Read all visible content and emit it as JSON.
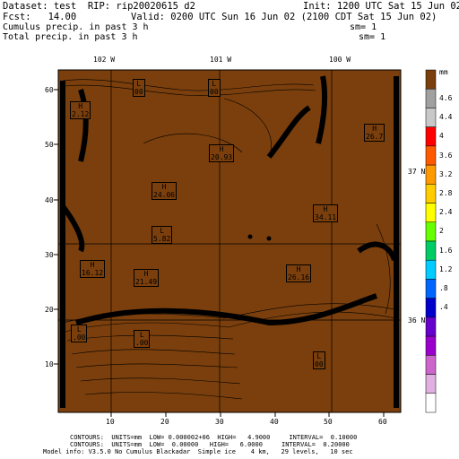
{
  "header": {
    "dataset_line": "Dataset: test  RIP: rip20020615 d2",
    "init_line": "Init: 1200 UTC Sat 15 Jun 02",
    "fcst_line": "Fcst:   14.00",
    "valid_line": "Valid: 0200 UTC Sun 16 Jun 02 (2100 CDT Sat 15 Jun 02)",
    "field1_line": "Cumulus precip. in past 3 h",
    "sm1_line": "sm= 1",
    "field2_line": "Total precip. in past 3 h",
    "sm2_line": "sm= 1"
  },
  "map": {
    "fill_color": "#7a3f0c",
    "top_lon_labels": [
      "102 W",
      "101 W",
      "100 W"
    ],
    "right_lat_labels": [
      "37 N",
      "36 N"
    ],
    "y_ticks": [
      "60",
      "50",
      "40",
      "30",
      "20",
      "10"
    ],
    "x_ticks": [
      "10",
      "20",
      "30",
      "40",
      "50",
      "60"
    ],
    "extrema": [
      {
        "label": "L",
        "value": "00"
      },
      {
        "label": "L",
        "value": "00"
      },
      {
        "label": "H",
        "value": "2.12"
      },
      {
        "label": "H",
        "value": "20.93"
      },
      {
        "label": "H",
        "value": "24.06"
      },
      {
        "label": "H",
        "value": "26.7"
      },
      {
        "label": "H",
        "value": "34.11"
      },
      {
        "label": "L",
        "value": "5.82"
      },
      {
        "label": "H",
        "value": "16.12"
      },
      {
        "label": "H",
        "value": "21.49"
      },
      {
        "label": "H",
        "value": "26.16"
      },
      {
        "label": "L",
        "value": "00"
      },
      {
        "label": "L",
        "value": ".00"
      },
      {
        "label": "L",
        "value": ".00"
      }
    ]
  },
  "colorbar": {
    "unit": "mm",
    "labels": [
      "4.6",
      "4.4",
      "4",
      "3.6",
      "3.2",
      "2.8",
      "2.4",
      "2",
      "1.6",
      "1.2",
      ".8",
      ".4"
    ],
    "colors": [
      "#7a3f0c",
      "#a0a0a0",
      "#c8c8c8",
      "#ff0000",
      "#ff5a00",
      "#ff9900",
      "#ffcc00",
      "#ffff00",
      "#66ff00",
      "#00cc66",
      "#00ccff",
      "#0066ff",
      "#0000cc",
      "#6600cc",
      "#9900cc",
      "#cc66cc",
      "#e0b0e0",
      "#ffffff"
    ]
  },
  "footer": {
    "line1": "CONTOURS:  UNITS=mm  LOW= 0.000002+06  HIGH=   4.9000     INTERVAL=  0.10000",
    "line2": "CONTOURS:  UNITS=mm  LOW=  0.00000   HIGH=   6.0000     INTERVAL=  0.20000",
    "line3": "Model info: V3.5.0 No Cumulus Blackadar  Simple ice    4 km,   29 levels,   10 sec"
  }
}
